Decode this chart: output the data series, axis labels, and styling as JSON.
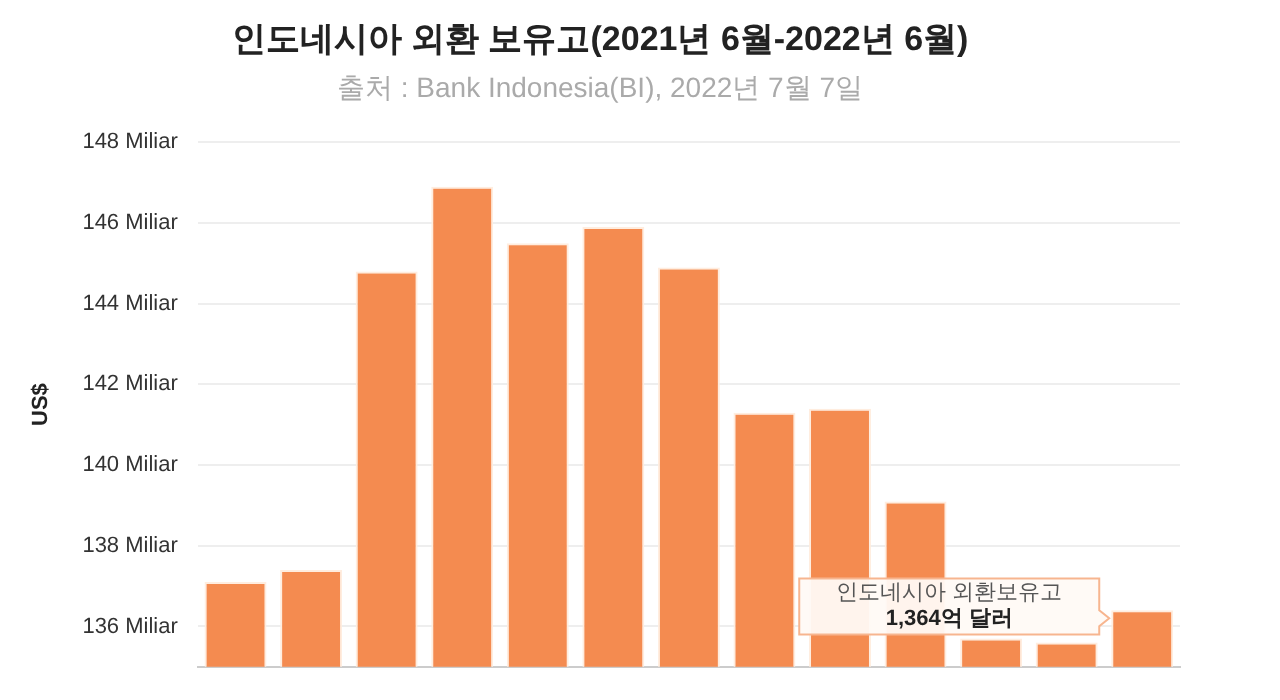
{
  "chart_data": {
    "type": "bar",
    "title": "인도네시아 외환 보유고(2021년 6월-2022년 6월)",
    "subtitle": "출처 : Bank Indonesia(BI), 2022년 7월 7일",
    "ylabel": "US$",
    "categories": [
      null,
      null,
      null,
      null,
      null,
      null,
      null,
      null,
      null,
      null,
      null,
      null,
      null
    ],
    "values": [
      137.1,
      137.4,
      144.8,
      146.9,
      145.5,
      145.9,
      144.9,
      141.3,
      141.4,
      139.1,
      135.7,
      135.6,
      136.4
    ],
    "color": "#f48b50",
    "ylim": [
      135,
      148
    ],
    "yticks": [
      {
        "value": 136,
        "label": "136 Miliar"
      },
      {
        "value": 138,
        "label": "138 Miliar"
      },
      {
        "value": 140,
        "label": "140 Miliar"
      },
      {
        "value": 142,
        "label": "142 Miliar"
      },
      {
        "value": 144,
        "label": "144 Miliar"
      },
      {
        "value": 146,
        "label": "146 Miliar"
      },
      {
        "value": 148,
        "label": "148 Miliar"
      }
    ],
    "grid": "y",
    "tick_labels": "y",
    "legend": false,
    "annotations": [
      "인도네시아 외환보유고",
      "1,364억 달러"
    ]
  }
}
